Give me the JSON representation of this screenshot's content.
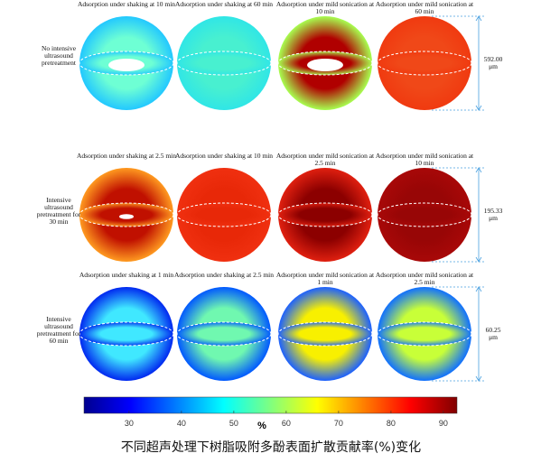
{
  "rows": [
    {
      "label": "No intensive ultrasound pretreatment",
      "dimension": "592.00 μm",
      "panels": [
        {
          "title": "Adsorption under shaking at 10 min"
        },
        {
          "title": "Adsorption under shaking at 60 min"
        },
        {
          "title": "Adsorption under mild sonication at 10 min"
        },
        {
          "title": "Adsorption under mild sonication at 60 min"
        }
      ]
    },
    {
      "label": "Intensive ultrasound pretreatment for 30 min",
      "dimension": "195.33 μm",
      "panels": [
        {
          "title": "Adsorption under shaking at 2.5 min"
        },
        {
          "title": "Adsorption under shaking at 10 min"
        },
        {
          "title": "Adsorption under mild sonication at 2.5 min"
        },
        {
          "title": "Adsorption under mild sonication at 10 min"
        }
      ]
    },
    {
      "label": "Intensive ultrasound pretreatment for 60 min",
      "dimension": "60.25 μm",
      "panels": [
        {
          "title": "Adsorption under shaking at 1 min"
        },
        {
          "title": "Adsorption under shaking at 2.5 min"
        },
        {
          "title": "Adsorption under mild sonication at 1 min"
        },
        {
          "title": "Adsorption under mild sonication at 2.5 min"
        }
      ]
    }
  ],
  "colorbar": {
    "lim": [
      21.4,
      92.6
    ],
    "ticks": [
      30,
      40,
      50,
      60,
      70,
      80,
      90
    ],
    "label": "%"
  },
  "caption": "不同超声处理下树脂吸附多酚表面扩散贡献率(%)变化"
}
